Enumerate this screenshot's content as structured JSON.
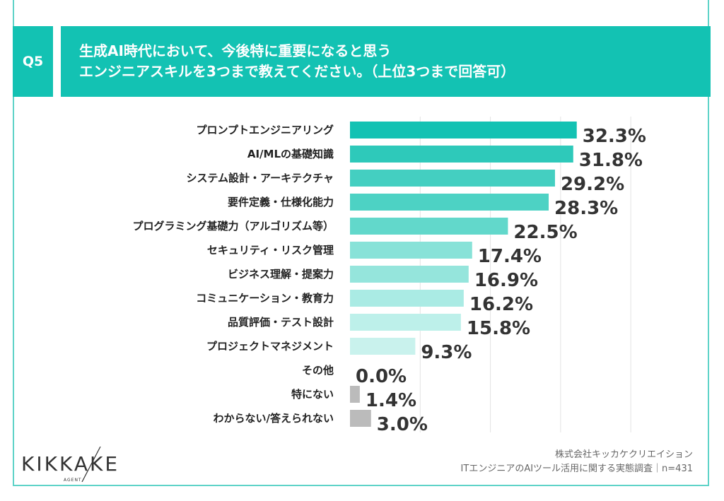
{
  "header": {
    "question_no": "Q5",
    "title_line1": "生成AI時代において、今後特に重要になると思う",
    "title_line2": "エンジニアスキルを3つまで教えてください。（上位3つまで回答可）"
  },
  "chart_data": {
    "type": "bar",
    "orientation": "horizontal",
    "categories": [
      "プロンプトエンジニアリング",
      "AI/MLの基礎知識",
      "システム設計・アーキテクチャ",
      "要件定義・仕様化能力",
      "プログラミング基礎力（アルゴリズム等）",
      "セキュリティ・リスク管理",
      "ビジネス理解・提案力",
      "コミュニケーション・教育力",
      "品質評価・テスト設計",
      "プロジェクトマネジメント",
      "その他",
      "特にない",
      "わからない/答えられない"
    ],
    "values": [
      32.3,
      31.8,
      29.2,
      28.3,
      22.5,
      17.4,
      16.9,
      16.2,
      15.8,
      9.3,
      0.0,
      1.4,
      3.0
    ],
    "value_labels": [
      "32.3%",
      "31.8%",
      "29.2%",
      "28.3%",
      "22.5%",
      "17.4%",
      "16.9%",
      "16.2%",
      "15.8%",
      "9.3%",
      "0.0%",
      "1.4%",
      "3.0%"
    ],
    "xlim": [
      0,
      40
    ],
    "grid": true,
    "unit": "%",
    "colors": [
      "#13c2b3",
      "#2ec9ba",
      "#44cfc1",
      "#4dd2c4",
      "#62d8cb",
      "#88e2d8",
      "#95e5dc",
      "#aaebe4",
      "#bdf0ea",
      "#c9f2ed",
      "#bbbbbb",
      "#bbbbbb",
      "#bbbbbb"
    ]
  },
  "footer": {
    "logo": "KIKKAKE",
    "logo_sub": "AGENT",
    "company": "株式会社キッカケクリエイション",
    "survey": "ITエンジニアのAIツール活用に関する実態調査｜n=431"
  }
}
